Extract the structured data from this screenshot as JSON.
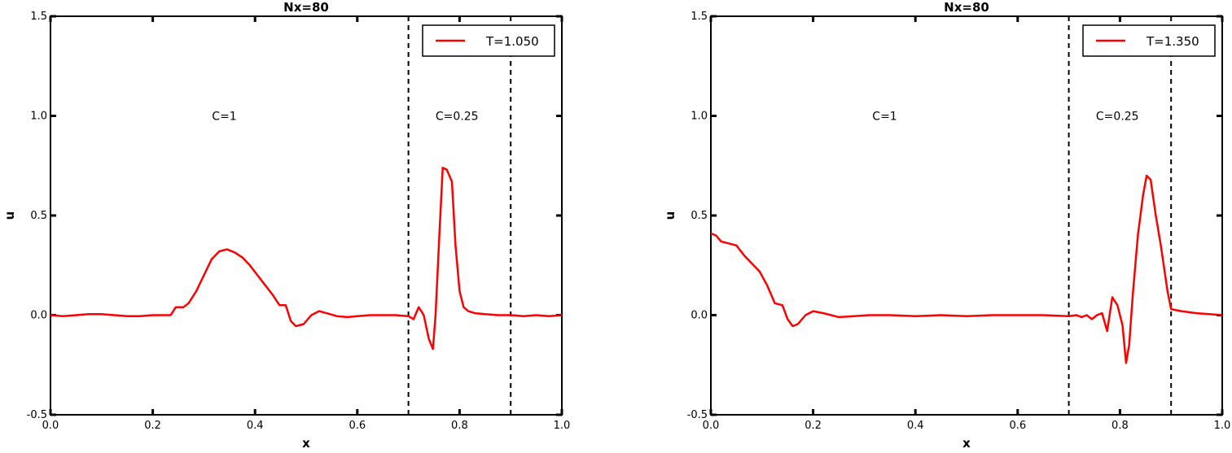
{
  "chart_data": [
    {
      "type": "line",
      "title": "Nx=80",
      "xlabel": "x",
      "ylabel": "u",
      "xlim": [
        0.0,
        1.0
      ],
      "ylim": [
        -0.5,
        1.5
      ],
      "xticks": [
        "0.0",
        "0.2",
        "0.4",
        "0.6",
        "0.8",
        "1.0"
      ],
      "yticks": [
        "-0.5",
        "0.0",
        "0.5",
        "1.0",
        "1.5"
      ],
      "grid": false,
      "legend_position": "top-right",
      "vlines": [
        0.7,
        0.9
      ],
      "annotations": [
        {
          "text": "C=1",
          "x": 0.34,
          "y": 1.0
        },
        {
          "text": "C=0.25",
          "x": 0.795,
          "y": 1.0
        }
      ],
      "series": [
        {
          "name": "T=1.050",
          "color": "#ff0000",
          "x": [
            0.0,
            0.025,
            0.05,
            0.075,
            0.1,
            0.125,
            0.15,
            0.175,
            0.2,
            0.225,
            0.235,
            0.245,
            0.26,
            0.27,
            0.285,
            0.3,
            0.315,
            0.33,
            0.345,
            0.36,
            0.375,
            0.39,
            0.405,
            0.42,
            0.435,
            0.448,
            0.46,
            0.47,
            0.48,
            0.495,
            0.51,
            0.525,
            0.54,
            0.56,
            0.58,
            0.6,
            0.625,
            0.65,
            0.675,
            0.7,
            0.71,
            0.72,
            0.73,
            0.74,
            0.748,
            0.753,
            0.76,
            0.767,
            0.775,
            0.785,
            0.792,
            0.8,
            0.808,
            0.817,
            0.83,
            0.85,
            0.875,
            0.9,
            0.925,
            0.95,
            0.975,
            1.0
          ],
          "y": [
            0.0,
            -0.005,
            0.0,
            0.005,
            0.005,
            0.0,
            -0.005,
            -0.005,
            0.0,
            0.0,
            0.0,
            0.04,
            0.04,
            0.06,
            0.12,
            0.2,
            0.28,
            0.32,
            0.33,
            0.315,
            0.29,
            0.25,
            0.2,
            0.15,
            0.1,
            0.05,
            0.05,
            -0.03,
            -0.055,
            -0.045,
            0.0,
            0.02,
            0.01,
            -0.005,
            -0.01,
            -0.005,
            0.0,
            0.0,
            0.0,
            -0.005,
            -0.02,
            0.04,
            0.0,
            -0.12,
            -0.17,
            0.0,
            0.38,
            0.74,
            0.73,
            0.67,
            0.35,
            0.12,
            0.04,
            0.02,
            0.01,
            0.005,
            0.0,
            0.0,
            -0.005,
            0.0,
            -0.005,
            0.0
          ]
        }
      ]
    },
    {
      "type": "line",
      "title": "Nx=80",
      "xlabel": "x",
      "ylabel": "u",
      "xlim": [
        0.0,
        1.0
      ],
      "ylim": [
        -0.5,
        1.5
      ],
      "xticks": [
        "0.0",
        "0.2",
        "0.4",
        "0.6",
        "0.8",
        "1.0"
      ],
      "yticks": [
        "-0.5",
        "0.0",
        "0.5",
        "1.0",
        "1.5"
      ],
      "grid": false,
      "legend_position": "top-right",
      "vlines": [
        0.7,
        0.9
      ],
      "annotations": [
        {
          "text": "C=1",
          "x": 0.34,
          "y": 1.0
        },
        {
          "text": "C=0.25",
          "x": 0.795,
          "y": 1.0
        }
      ],
      "series": [
        {
          "name": "T=1.350",
          "color": "#ff0000",
          "x": [
            0.0,
            0.01,
            0.02,
            0.035,
            0.05,
            0.065,
            0.08,
            0.095,
            0.11,
            0.125,
            0.14,
            0.15,
            0.16,
            0.17,
            0.185,
            0.2,
            0.22,
            0.25,
            0.28,
            0.31,
            0.35,
            0.4,
            0.45,
            0.5,
            0.55,
            0.6,
            0.65,
            0.7,
            0.715,
            0.725,
            0.735,
            0.745,
            0.755,
            0.765,
            0.775,
            0.785,
            0.795,
            0.805,
            0.812,
            0.818,
            0.825,
            0.835,
            0.845,
            0.852,
            0.86,
            0.87,
            0.88,
            0.893,
            0.9,
            0.92,
            0.95,
            0.975,
            1.0
          ],
          "y": [
            0.41,
            0.4,
            0.37,
            0.36,
            0.35,
            0.3,
            0.26,
            0.22,
            0.15,
            0.06,
            0.05,
            -0.02,
            -0.055,
            -0.045,
            0.0,
            0.02,
            0.01,
            -0.01,
            -0.005,
            0.0,
            0.0,
            -0.005,
            0.0,
            -0.005,
            0.0,
            0.0,
            0.0,
            -0.005,
            0.0,
            -0.01,
            0.0,
            -0.02,
            0.0,
            0.01,
            -0.08,
            0.09,
            0.05,
            -0.05,
            -0.24,
            -0.15,
            0.1,
            0.4,
            0.6,
            0.7,
            0.68,
            0.5,
            0.35,
            0.12,
            0.03,
            0.02,
            0.01,
            0.005,
            0.0
          ]
        }
      ]
    }
  ]
}
